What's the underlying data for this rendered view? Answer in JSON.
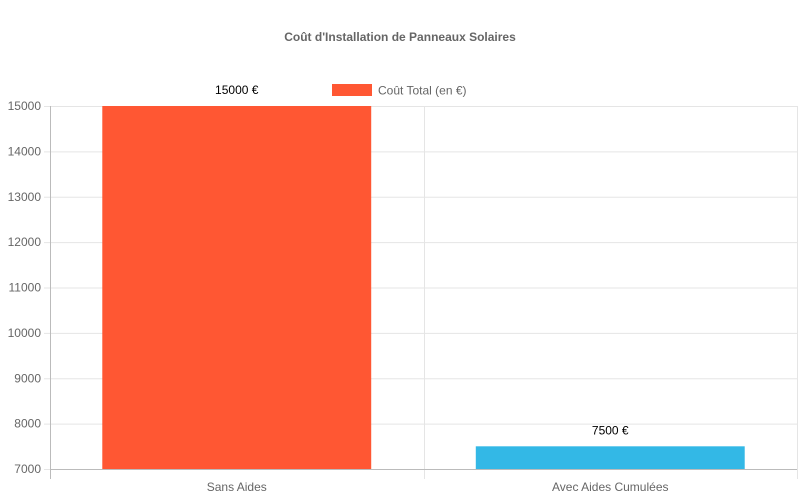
{
  "chart_data": {
    "type": "bar",
    "title": "Coût d'Installation de Panneaux Solaires",
    "categories": [
      "Sans Aides",
      "Avec Aides Cumulées"
    ],
    "series": [
      {
        "name": "Coût Total (en €)",
        "values": [
          15000,
          7500
        ],
        "colors": [
          "#ff5733",
          "#33b8e6"
        ]
      }
    ],
    "data_labels": [
      "15000 €",
      "7500 €"
    ],
    "ylim": [
      7000,
      15000
    ],
    "yticks": [
      7000,
      8000,
      9000,
      10000,
      11000,
      12000,
      13000,
      14000,
      15000
    ],
    "grid": true,
    "legend_position": "top"
  }
}
